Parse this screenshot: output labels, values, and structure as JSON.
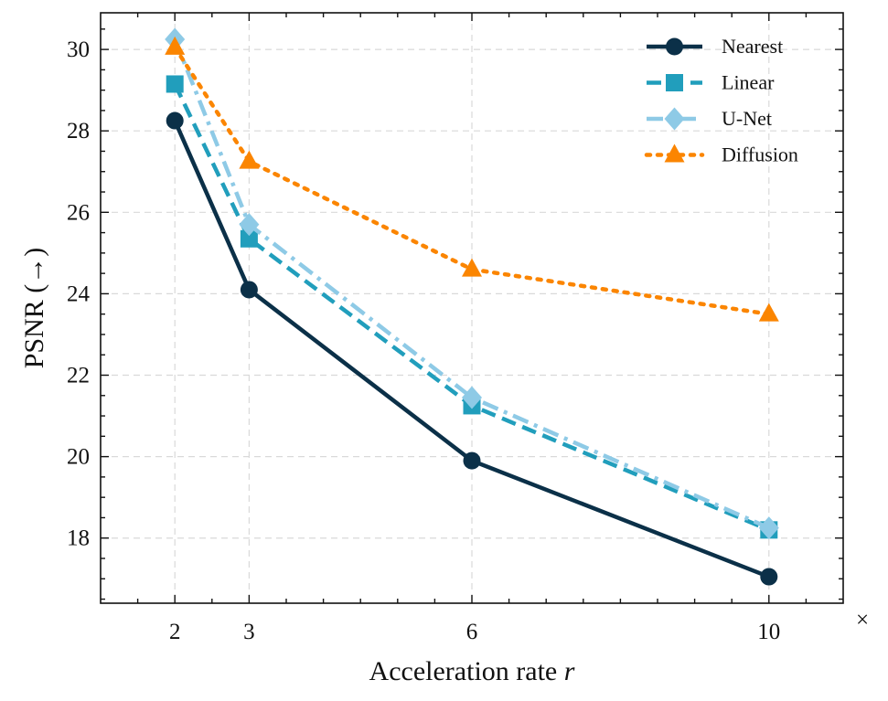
{
  "chart_data": {
    "type": "line",
    "xlabel": "Acceleration rate",
    "xlabel_var": "r",
    "ylabel": "PSNR (→)",
    "x_unit_suffix": "×",
    "x": [
      2,
      3,
      6,
      10
    ],
    "xticks": [
      2,
      3,
      6,
      10
    ],
    "yticks": [
      18,
      20,
      22,
      24,
      26,
      28,
      30
    ],
    "xlim": [
      1.0,
      11.0
    ],
    "ylim": [
      16.4,
      30.9
    ],
    "grid": true,
    "legend_position": "top-right",
    "series": [
      {
        "name": "Nearest",
        "values": [
          28.25,
          24.1,
          19.9,
          17.05
        ],
        "color": "#0b3048",
        "marker": "circle",
        "line_style": "solid"
      },
      {
        "name": "Linear",
        "values": [
          29.15,
          25.35,
          21.25,
          18.2
        ],
        "color": "#219ebc",
        "marker": "square",
        "line_style": "dashed"
      },
      {
        "name": "U-Net",
        "values": [
          30.25,
          25.7,
          21.45,
          18.25
        ],
        "color": "#8ecae6",
        "marker": "diamond",
        "line_style": "dashdot"
      },
      {
        "name": "Diffusion",
        "values": [
          30.05,
          27.25,
          24.6,
          23.5
        ],
        "color": "#fb8500",
        "marker": "triangle",
        "line_style": "dotted"
      }
    ]
  }
}
